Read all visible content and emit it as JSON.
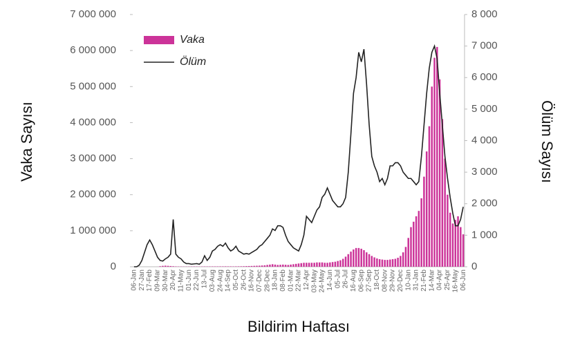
{
  "chart_data": {
    "type": "bar-line",
    "x_label": "Bildirim Haftası",
    "y_label": "Vaka Sayısı",
    "y2_label": "Ölüm Sayısı",
    "legend": "top-left",
    "categories": [
      "06-Jan",
      null,
      null,
      "27-Jan",
      null,
      null,
      "17-Feb",
      null,
      null,
      "09-Mar",
      null,
      null,
      "30-Mar",
      null,
      null,
      "20-Apr",
      null,
      null,
      "11-May",
      null,
      null,
      "01-Jun",
      null,
      null,
      "22-Jun",
      null,
      null,
      "13-Jul",
      null,
      null,
      "03-Aug",
      null,
      null,
      "24-Aug",
      null,
      null,
      "14-Sep",
      null,
      null,
      "05-Oct",
      null,
      null,
      "26-Oct",
      null,
      null,
      "16-Nov",
      null,
      null,
      "07-Dec",
      null,
      null,
      "28-Dec",
      null,
      null,
      "18-Jan",
      null,
      null,
      "08-Feb",
      null,
      null,
      "01-Mar",
      null,
      null,
      "22-Mar",
      null,
      null,
      "12-Apr",
      null,
      null,
      "03-May",
      null,
      null,
      "24-May",
      null,
      null,
      "14-Jun",
      null,
      null,
      "05-Jul",
      null,
      null,
      "26-Jul",
      null,
      null,
      "16-Aug",
      null,
      null,
      "06-Sep",
      null,
      null,
      "27-Sep",
      null,
      null,
      "18-Oct",
      null,
      null,
      "08-Nov",
      null,
      null,
      "29-Nov",
      null,
      null,
      "20-Dec",
      null,
      null,
      "10-Jan",
      null,
      null,
      "31-Jan",
      null,
      null,
      "21-Feb",
      null,
      null,
      "14-Mar",
      null,
      null,
      "04-Apr",
      null,
      null,
      "25-Apr",
      null,
      null,
      "16-May",
      null,
      null,
      "06-Jun"
    ],
    "series": [
      {
        "name": "Vaka",
        "type": "bar",
        "color": "#cc3399",
        "values": [
          0,
          0,
          0,
          0,
          0,
          0,
          0,
          0,
          100,
          1000,
          15000,
          25000,
          30000,
          25000,
          20000,
          15000,
          10000,
          8000,
          7000,
          6000,
          6000,
          7000,
          8000,
          9000,
          8000,
          7000,
          8000,
          9000,
          8000,
          9000,
          10000,
          10000,
          10000,
          11000,
          11000,
          12000,
          11000,
          11000,
          10000,
          11000,
          12000,
          13000,
          15000,
          18000,
          20000,
          22000,
          25000,
          28000,
          30000,
          35000,
          40000,
          50000,
          60000,
          70000,
          60000,
          50000,
          55000,
          60000,
          55000,
          50000,
          60000,
          70000,
          80000,
          90000,
          100000,
          110000,
          110000,
          110000,
          110000,
          110000,
          120000,
          120000,
          120000,
          110000,
          110000,
          120000,
          130000,
          140000,
          160000,
          180000,
          220000,
          280000,
          350000,
          420000,
          480000,
          520000,
          520000,
          500000,
          460000,
          400000,
          350000,
          300000,
          260000,
          230000,
          210000,
          200000,
          190000,
          190000,
          200000,
          210000,
          220000,
          250000,
          300000,
          400000,
          550000,
          800000,
          1100000,
          1250000,
          1400000,
          1550000,
          1900000,
          2500000,
          3200000,
          3900000,
          5000000,
          5800000,
          6100000,
          5200000,
          4100000,
          3000000,
          2000000,
          1500000,
          1200000,
          1300000,
          1400000,
          1100000,
          900000
        ]
      },
      {
        "name": "Ölüm",
        "type": "line",
        "axis": "y2",
        "color": "#222222",
        "values": [
          0,
          0,
          50,
          200,
          450,
          700,
          850,
          700,
          500,
          300,
          200,
          180,
          250,
          300,
          400,
          1500,
          400,
          300,
          250,
          150,
          100,
          100,
          80,
          90,
          100,
          80,
          150,
          350,
          200,
          300,
          500,
          550,
          650,
          700,
          650,
          750,
          600,
          500,
          550,
          650,
          500,
          450,
          400,
          420,
          400,
          450,
          500,
          550,
          650,
          700,
          800,
          900,
          1000,
          1200,
          1150,
          1300,
          1300,
          1250,
          1000,
          800,
          700,
          600,
          550,
          500,
          700,
          1000,
          1600,
          1500,
          1400,
          1600,
          1800,
          1900,
          2200,
          2300,
          2500,
          2300,
          2100,
          2000,
          1900,
          1900,
          2000,
          2200,
          3000,
          4200,
          5500,
          6000,
          6800,
          6500,
          6900,
          5800,
          4500,
          3500,
          3200,
          3000,
          2700,
          2800,
          2600,
          2800,
          3200,
          3200,
          3300,
          3300,
          3200,
          3000,
          2900,
          2800,
          2800,
          2700,
          2600,
          2700,
          3500,
          4500,
          5500,
          6300,
          6800,
          7000,
          6600,
          5500,
          4500,
          3500,
          2800,
          2200,
          1700,
          1300,
          1300,
          1500,
          1900
        ]
      }
    ],
    "ylim": [
      0,
      7000000
    ],
    "yticks": [
      0,
      {
        "value": 1000000,
        "label": "1 000 000"
      },
      {
        "value": 2000000,
        "label": "2 000 000"
      },
      {
        "value": 3000000,
        "label": "3 000 000"
      },
      {
        "value": 4000000,
        "label": "4 000 000"
      },
      {
        "value": 5000000,
        "label": "5 000 000"
      },
      {
        "value": 6000000,
        "label": "6 000 000"
      },
      {
        "value": 7000000,
        "label": "7 000 000"
      }
    ],
    "y2lim": [
      0,
      8000
    ],
    "y2ticks": [
      0,
      {
        "value": 1000,
        "label": "1 000"
      },
      {
        "value": 2000,
        "label": "2 000"
      },
      {
        "value": 3000,
        "label": "3 000"
      },
      {
        "value": 4000,
        "label": "4 000"
      },
      {
        "value": 5000,
        "label": "5 000"
      },
      {
        "value": 6000,
        "label": "6 000"
      },
      {
        "value": 7000,
        "label": "7 000"
      },
      {
        "value": 8000,
        "label": "8 000"
      }
    ]
  }
}
